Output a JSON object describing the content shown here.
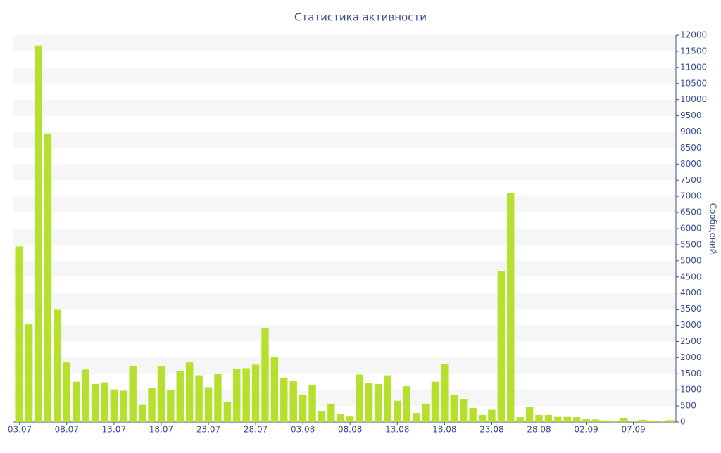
{
  "chart_data": {
    "type": "bar",
    "title": "Статистика активности",
    "y_label": "Сообщений",
    "color": "#b5e02e",
    "categories": [
      "03.07",
      null,
      null,
      null,
      null,
      "08.07",
      null,
      null,
      null,
      null,
      "13.07",
      null,
      null,
      null,
      null,
      "18.07",
      null,
      null,
      null,
      null,
      "23.07",
      null,
      null,
      null,
      null,
      "28.07",
      null,
      null,
      null,
      null,
      "03.08",
      null,
      null,
      null,
      null,
      "08.08",
      null,
      null,
      null,
      null,
      "13.08",
      null,
      null,
      null,
      null,
      "18.08",
      null,
      null,
      null,
      null,
      "23.08",
      null,
      null,
      null,
      null,
      "28.08",
      null,
      null,
      null,
      null,
      "02.09",
      null,
      null,
      null,
      null,
      "07.09",
      null,
      null,
      null,
      null
    ],
    "values": [
      5450,
      3030,
      11680,
      8950,
      3500,
      1850,
      1250,
      1630,
      1180,
      1230,
      1010,
      970,
      1730,
      530,
      1060,
      1720,
      990,
      1580,
      1850,
      1450,
      1080,
      1490,
      620,
      1650,
      1670,
      1780,
      2900,
      2030,
      1380,
      1270,
      830,
      1160,
      330,
      570,
      240,
      170,
      1470,
      1210,
      1180,
      1450,
      660,
      1110,
      280,
      570,
      1250,
      1800,
      850,
      720,
      440,
      220,
      380,
      4690,
      7090,
      150,
      470,
      220,
      220,
      160,
      160,
      150,
      90,
      80,
      50,
      40,
      130,
      40,
      70,
      30,
      40,
      60
    ],
    "ylim": [
      0,
      12000
    ],
    "yticks": [
      0,
      500,
      1000,
      1500,
      2000,
      2500,
      3000,
      3500,
      4000,
      4500,
      5000,
      5500,
      6000,
      6500,
      7000,
      7500,
      8000,
      8500,
      9000,
      9500,
      10000,
      10500,
      11000,
      11500,
      12000
    ],
    "stripes": true,
    "y_axis_side": "right"
  }
}
